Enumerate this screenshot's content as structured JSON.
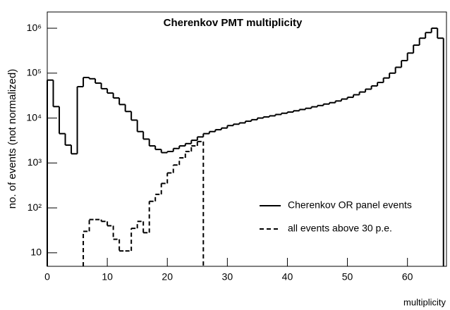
{
  "chart_data": {
    "type": "histogram",
    "title": "Cherenkov PMT multiplicity",
    "x_label": "multiplicity",
    "y_label": "no. of events (not normalized)",
    "log_y": true,
    "legend": "lower right",
    "bins": [
      0,
      1,
      2,
      3,
      4,
      5,
      6,
      7,
      8,
      9,
      10,
      11,
      12,
      13,
      14,
      15,
      16,
      17,
      18,
      19,
      20,
      21,
      22,
      23,
      24,
      25,
      26,
      27,
      28,
      29,
      30,
      31,
      32,
      33,
      34,
      35,
      36,
      37,
      38,
      39,
      40,
      41,
      42,
      43,
      44,
      45,
      46,
      47,
      48,
      49,
      50,
      51,
      52,
      53,
      54,
      55,
      56,
      57,
      58,
      59,
      60,
      61,
      62,
      63,
      64,
      65,
      66
    ],
    "series": [
      {
        "name": "Cherenkov  OR  panel events",
        "color": "#000000",
        "dash": "solid",
        "values": [
          70000,
          18000,
          4500,
          2500,
          1600,
          50000,
          80000,
          75000,
          60000,
          45000,
          36000,
          28000,
          20000,
          14000,
          9000,
          5000,
          3400,
          2400,
          2000,
          1700,
          1800,
          2100,
          2400,
          2700,
          3200,
          3800,
          4500,
          5000,
          5500,
          6000,
          6800,
          7300,
          7800,
          8500,
          9200,
          10000,
          10600,
          11200,
          12000,
          12800,
          13600,
          14500,
          15500,
          16500,
          17800,
          19000,
          20500,
          22000,
          24000,
          26500,
          29000,
          33000,
          38000,
          44000,
          52000,
          62000,
          78000,
          100000,
          135000,
          190000,
          280000,
          420000,
          600000,
          800000,
          1000000,
          600000
        ]
      },
      {
        "name": "all events above 30 p.e.",
        "color": "#000000",
        "dash": "dashed",
        "values": [
          null,
          null,
          null,
          null,
          null,
          null,
          30,
          55,
          55,
          50,
          40,
          20,
          11,
          11,
          35,
          50,
          28,
          140,
          200,
          350,
          600,
          900,
          1300,
          1800,
          2400,
          3000,
          null,
          null,
          null,
          null,
          null,
          null,
          null,
          null,
          null,
          null,
          null,
          null,
          null,
          null,
          null,
          null,
          null,
          null,
          null,
          null,
          null,
          null,
          null,
          null,
          null,
          null,
          null,
          null,
          null,
          null,
          null,
          null,
          null,
          null,
          null,
          null,
          null,
          null,
          null,
          null
        ]
      }
    ],
    "xlim": [
      0,
      66.5
    ],
    "ylim": [
      5,
      2300000
    ],
    "xticks": [
      0,
      10,
      20,
      30,
      40,
      50,
      60
    ],
    "yticks": [
      10,
      {
        "value": 100,
        "label": "10²"
      },
      {
        "value": 1000,
        "label": "10³"
      },
      {
        "value": 10000,
        "label": "10⁴"
      },
      {
        "value": 100000,
        "label": "10⁵"
      },
      {
        "value": 1000000,
        "label": "10⁶"
      }
    ]
  }
}
